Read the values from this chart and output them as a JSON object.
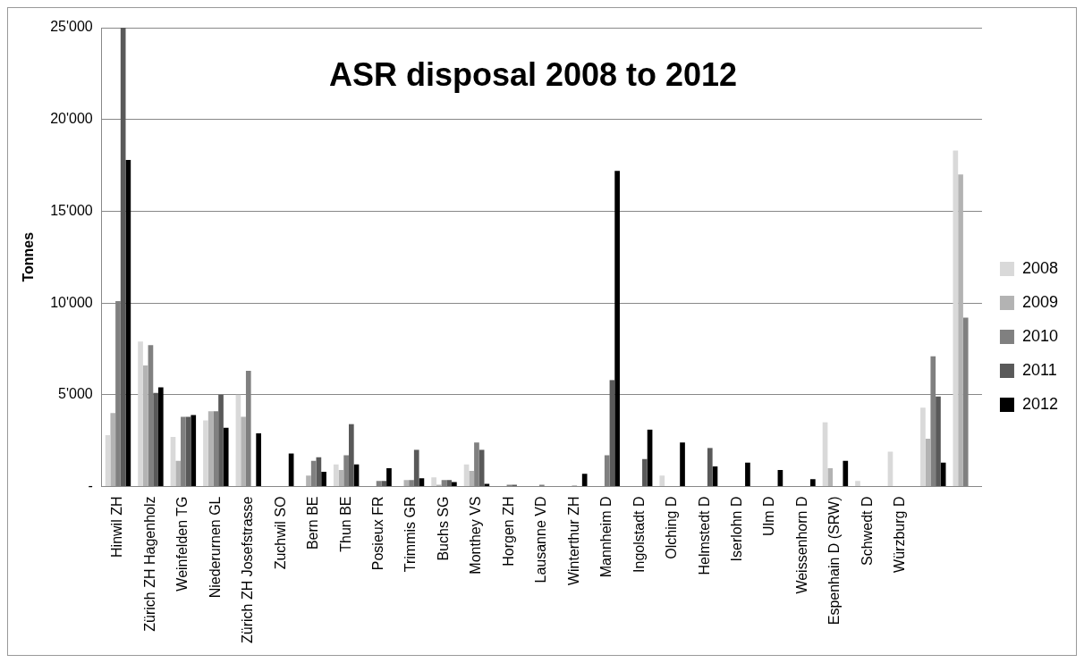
{
  "chart_data": {
    "type": "bar",
    "title": "ASR disposal 2008 to 2012",
    "ylabel": "Tonnes",
    "categories": [
      "Hinwil ZH",
      "Zürich ZH Hagenholz",
      "Weinfelden TG",
      "Niederurnen GL",
      "Zürich ZH Josefstrasse",
      "Zuchwil SO",
      "Bern BE",
      "Thun BE",
      "Posieux FR",
      "Trimmis GR",
      "Buchs SG",
      "Monthey VS",
      "Horgen ZH",
      "Lausanne VD",
      "Winterthur ZH",
      "Mannheim D",
      "Ingolstadt D",
      "Olching D",
      "Helmstedt D",
      "Iserlohn D",
      "Ulm D",
      "Weissenhorn D",
      "Espenhain D (SRW)",
      "Schwedt D",
      "Würzburg D",
      null,
      null
    ],
    "series": [
      {
        "name": "2008",
        "color": "#d9d9d9",
        "values": [
          2800,
          7900,
          2700,
          3600,
          5000,
          null,
          0,
          1200,
          null,
          0,
          500,
          1200,
          0,
          0,
          0,
          0,
          0,
          600,
          0,
          0,
          0,
          0,
          3500,
          300,
          1900,
          4300,
          18300
        ]
      },
      {
        "name": "2009",
        "color": "#b3b3b3",
        "values": [
          4000,
          6600,
          1400,
          4100,
          3800,
          0,
          600,
          900,
          0,
          350,
          100,
          850,
          0,
          0,
          0,
          0,
          0,
          0,
          0,
          0,
          0,
          0,
          1000,
          0,
          0,
          2600,
          17000
        ]
      },
      {
        "name": "2010",
        "color": "#808080",
        "values": [
          10100,
          7700,
          3800,
          4100,
          6300,
          0,
          1400,
          1700,
          300,
          350,
          350,
          2400,
          100,
          100,
          50,
          1700,
          0,
          0,
          0,
          0,
          0,
          0,
          0,
          0,
          0,
          7100,
          9200
        ]
      },
      {
        "name": "2011",
        "color": "#595959",
        "values": [
          25000,
          5100,
          3800,
          5000,
          0,
          0,
          1600,
          3400,
          300,
          2000,
          350,
          2000,
          100,
          0,
          0,
          5800,
          1500,
          0,
          2100,
          0,
          0,
          0,
          0,
          0,
          0,
          4900,
          0
        ]
      },
      {
        "name": "2012",
        "color": "#000000",
        "values": [
          17800,
          5400,
          3900,
          3200,
          2900,
          1800,
          800,
          1200,
          1000,
          450,
          250,
          150,
          0,
          0,
          700,
          17200,
          3100,
          2400,
          1100,
          1300,
          900,
          400,
          1400,
          0,
          0,
          1300,
          0
        ]
      }
    ],
    "ylim": [
      0,
      25000
    ],
    "yticks": [
      {
        "value": 0,
        "label": "-"
      },
      {
        "value": 5000,
        "label": "5'000"
      },
      {
        "value": 10000,
        "label": "10'000"
      },
      {
        "value": 15000,
        "label": "15'000"
      },
      {
        "value": 20000,
        "label": "20'000"
      },
      {
        "value": 25000,
        "label": "25'000"
      }
    ],
    "grid": "y",
    "legend": "right"
  }
}
